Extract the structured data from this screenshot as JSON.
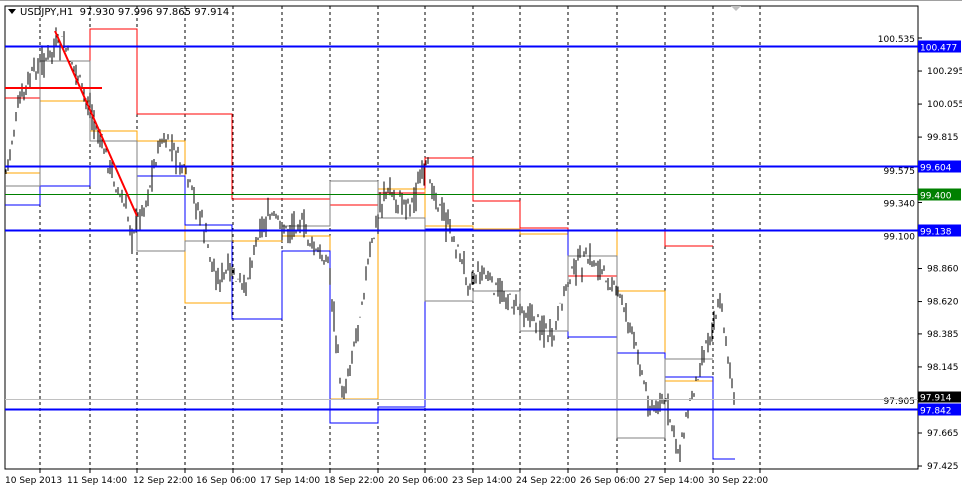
{
  "header": {
    "symbol": "USDJPY,H1",
    "open": "97.930",
    "high": "97.996",
    "low": "97.865",
    "close": "97.914"
  },
  "chart_data": {
    "type": "ohlc-bar",
    "symbol": "USDJPY",
    "timeframe": "H1",
    "ylim": [
      97.425,
      100.59
    ],
    "y_ticks": [
      "100.535",
      "100.295",
      "100.055",
      "99.815",
      "99.575",
      "99.340",
      "99.100",
      "98.860",
      "98.620",
      "98.385",
      "98.145",
      "97.905",
      "97.665",
      "97.425"
    ],
    "x_tick_labels": [
      "10 Sep 2013",
      "11 Sep 14:00",
      "12 Sep 22:00",
      "16 Sep 06:00",
      "17 Sep 14:00",
      "18 Sep 22:00",
      "20 Sep 06:00",
      "23 Sep 14:00",
      "24 Sep 22:00",
      "26 Sep 06:00",
      "27 Sep 14:00",
      "30 Sep 22:00"
    ],
    "grid": true,
    "approx_close_path": [
      99.569,
      100.077,
      100.295,
      100.404,
      100.513,
      100.295,
      100.005,
      99.714,
      99.423,
      99.133,
      99.351,
      99.787,
      99.714,
      99.496,
      99.205,
      98.769,
      98.842,
      98.697,
      99.133,
      99.242,
      99.133,
      99.205,
      98.987,
      98.915,
      97.897,
      98.406,
      98.987,
      99.423,
      99.351,
      99.351,
      99.605,
      99.278,
      99.06,
      98.769,
      98.842,
      98.697,
      98.624,
      98.551,
      98.479,
      98.333,
      98.769,
      98.915,
      98.915,
      98.769,
      98.624,
      98.261,
      97.825,
      97.897,
      97.534,
      97.97,
      98.333,
      98.624,
      97.861
    ],
    "horizontal_levels": [
      {
        "price": "100.477",
        "color": "#0000ff"
      },
      {
        "price": "99.604",
        "color": "#0000ff"
      },
      {
        "price": "99.400",
        "color": "#008000"
      },
      {
        "price": "99.138",
        "color": "#0000ff"
      },
      {
        "price": "97.842",
        "color": "#0000ff"
      }
    ],
    "current_price": "97.914",
    "colors": {
      "bars": "#000000",
      "levels": "#0000ff",
      "trendline": "#ff0000",
      "pivot_high": "#ff0000",
      "pivot_mid": "#ffa500",
      "pivot_low": "#0000ff",
      "pivot_gray": "#808080"
    }
  }
}
